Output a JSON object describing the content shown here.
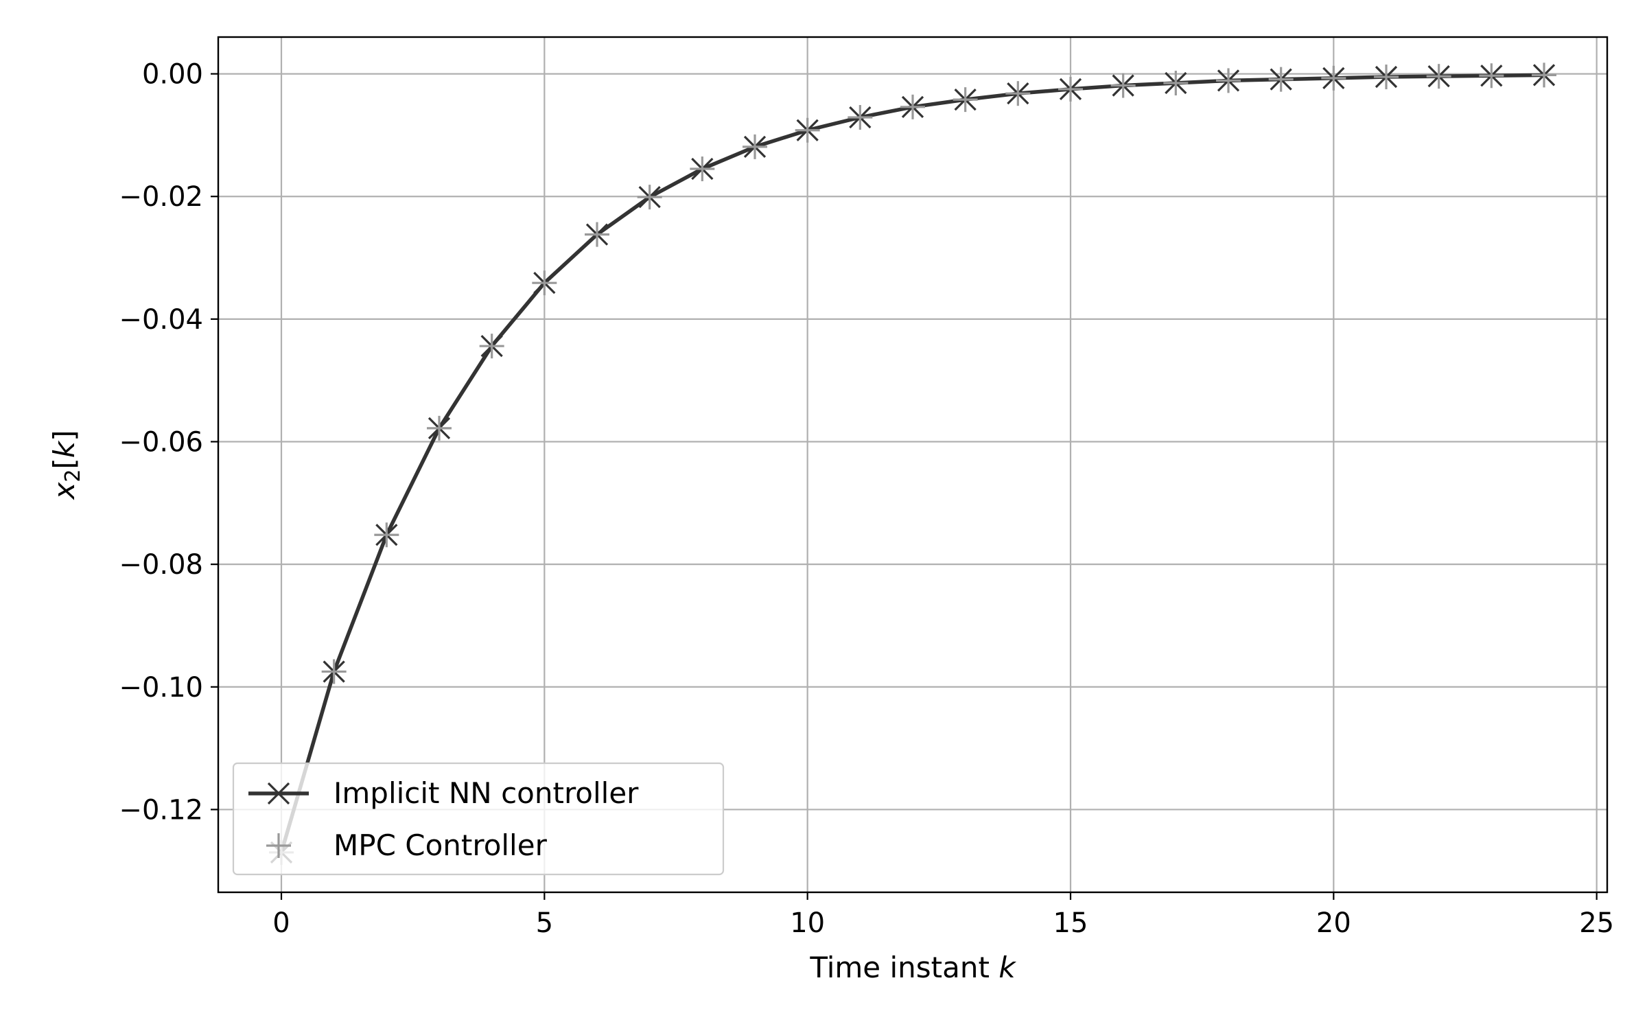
{
  "chart_data": {
    "type": "line",
    "xlabel": "Time instant k",
    "xlabel_parts": {
      "text": "Time instant ",
      "var": "k"
    },
    "ylabel_parts": {
      "var": "x",
      "sub": "2",
      "open": "[",
      "arg": "k",
      "close": "]"
    },
    "xlim": [
      -1.2,
      25.2
    ],
    "ylim": [
      -0.1335,
      0.006
    ],
    "x_ticks": [
      0,
      5,
      10,
      15,
      20,
      25
    ],
    "x_tick_labels": [
      "0",
      "5",
      "10",
      "15",
      "20",
      "25"
    ],
    "y_ticks": [
      0.0,
      -0.02,
      -0.04,
      -0.06,
      -0.08,
      -0.1,
      -0.12
    ],
    "y_tick_labels": [
      "0.00",
      "−0.02",
      "−0.04",
      "−0.06",
      "−0.08",
      "−0.10",
      "−0.12"
    ],
    "grid": true,
    "legend_position": "lower-left",
    "x": [
      0,
      1,
      2,
      3,
      4,
      5,
      6,
      7,
      8,
      9,
      10,
      11,
      12,
      13,
      14,
      15,
      16,
      17,
      18,
      19,
      20,
      21,
      22,
      23,
      24
    ],
    "series": [
      {
        "name": "Implicit NN controller",
        "color": "#333333",
        "marker": "x",
        "line": true,
        "values": [
          -0.127,
          -0.0975,
          -0.0752,
          -0.0578,
          -0.0444,
          -0.0341,
          -0.0262,
          -0.0201,
          -0.0155,
          -0.0119,
          -0.0092,
          -0.0071,
          -0.0054,
          -0.0042,
          -0.0032,
          -0.0025,
          -0.0019,
          -0.0015,
          -0.0011,
          -0.0009,
          -0.0007,
          -0.0005,
          -0.0004,
          -0.0003,
          -0.0002
        ]
      },
      {
        "name": "MPC Controller",
        "color": "#999999",
        "marker": "+",
        "line": false,
        "values": [
          -0.127,
          -0.0975,
          -0.0752,
          -0.0578,
          -0.0444,
          -0.0341,
          -0.0262,
          -0.0201,
          -0.0155,
          -0.0119,
          -0.0092,
          -0.0071,
          -0.0054,
          -0.0042,
          -0.0032,
          -0.0025,
          -0.0019,
          -0.0015,
          -0.0011,
          -0.0009,
          -0.0007,
          -0.0005,
          -0.0004,
          -0.0003,
          -0.0002
        ]
      }
    ]
  }
}
